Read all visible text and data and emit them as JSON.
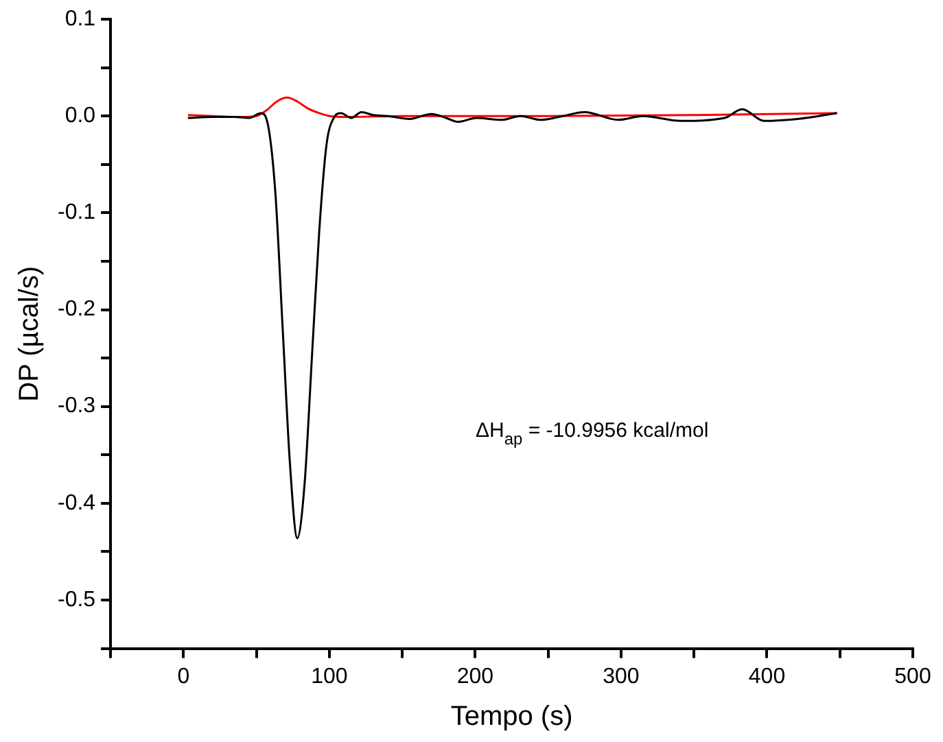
{
  "chart_data": {
    "type": "line",
    "xlabel": "Tempo (s)",
    "ylabel": "DP (µcal/s)",
    "annotations": [
      "ΔH$_{ap}$ = -10.9956 kcal/mol"
    ],
    "xlim": [
      -50,
      500
    ],
    "xticks": [
      {
        "value": -50,
        "label": null
      },
      0,
      {
        "value": 50,
        "label": null
      },
      100,
      {
        "value": 150,
        "label": null
      },
      200,
      {
        "value": 250,
        "label": null
      },
      300,
      {
        "value": 350,
        "label": null
      },
      400,
      {
        "value": 450,
        "label": null
      },
      500
    ],
    "ylim": [
      -0.55,
      0.1
    ],
    "yticks": [
      {
        "value": -0.55,
        "label": null
      },
      -0.5,
      {
        "value": -0.45,
        "label": null
      },
      -0.4,
      {
        "value": -0.35,
        "label": null
      },
      -0.3,
      {
        "value": -0.25,
        "label": null
      },
      -0.2,
      {
        "value": -0.15,
        "label": null
      },
      -0.1,
      {
        "value": -0.05,
        "label": null
      },
      {
        "value": 0,
        "label": "0.0"
      },
      {
        "value": 0.05,
        "label": null
      },
      0.1
    ],
    "grid": false,
    "legend": false,
    "marker": "none",
    "line_style": "solid",
    "series": [
      {
        "color": "#000000",
        "x": [
          3,
          20,
          35,
          45,
          53,
          58,
          63,
          68,
          73,
          78,
          83,
          88,
          93,
          98,
          103,
          108,
          115,
          122,
          130,
          140,
          155,
          170,
          180,
          188,
          201,
          218,
          231,
          245,
          260,
          275,
          298,
          315,
          341,
          371,
          383,
          398,
          421,
          448
        ],
        "values": [
          -0.002,
          -0.001,
          -0.001,
          -0.002,
          0.003,
          -0.01,
          -0.08,
          -0.22,
          -0.36,
          -0.436,
          -0.38,
          -0.25,
          -0.12,
          -0.03,
          -0.002,
          0.003,
          -0.002,
          0.004,
          0.001,
          0.0,
          -0.003,
          0.002,
          -0.002,
          -0.006,
          -0.002,
          -0.004,
          0.0,
          -0.004,
          0.0,
          0.004,
          -0.004,
          0.0,
          -0.005,
          -0.002,
          0.007,
          -0.005,
          -0.003,
          0.003
        ]
      },
      {
        "color": "#ff0000",
        "x": [
          3,
          20,
          40,
          50,
          57,
          64,
          71,
          78,
          85,
          93,
          100,
          112,
          150,
          250,
          350,
          448
        ],
        "values": [
          0.001,
          0.0,
          -0.001,
          0.0,
          0.006,
          0.015,
          0.019,
          0.015,
          0.008,
          0.003,
          0.0,
          -0.001,
          0.0,
          0.0,
          0.001,
          0.003
        ]
      }
    ]
  }
}
